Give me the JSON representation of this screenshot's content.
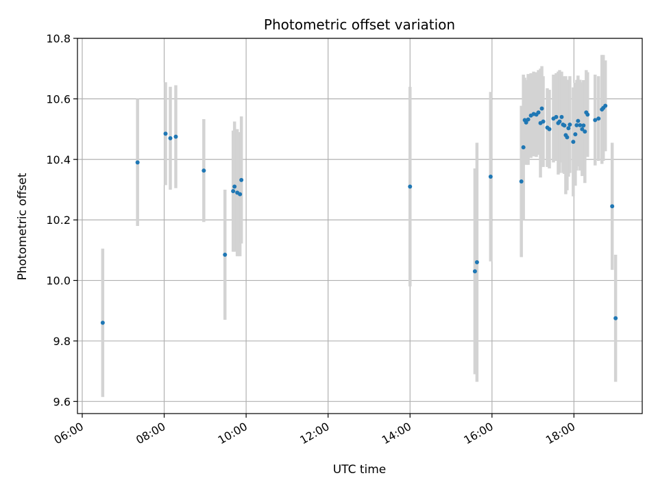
{
  "chart_data": {
    "type": "scatter",
    "title": "Photometric offset variation",
    "xlabel": "UTC time",
    "ylabel": "Photometric offset",
    "x_is_time": true,
    "xlim": [
      "05:53",
      "19:40"
    ],
    "ylim": [
      9.56,
      10.8
    ],
    "x_ticks": [
      "06:00",
      "08:00",
      "10:00",
      "12:00",
      "14:00",
      "16:00",
      "18:00"
    ],
    "y_ticks": [
      9.6,
      9.8,
      10.0,
      10.2,
      10.4,
      10.6,
      10.8
    ],
    "grid": true,
    "colors": {
      "point": "#1f77b4",
      "errorbar": "#d3d3d3",
      "grid": "#b0b0b0",
      "axis": "#000000"
    },
    "series": [
      {
        "points": [
          {
            "t": "06:30",
            "y": 9.86,
            "err": 0.245
          },
          {
            "t": "07:21",
            "y": 10.39,
            "err": 0.21
          },
          {
            "t": "08:02",
            "y": 10.485,
            "err": 0.17
          },
          {
            "t": "08:09",
            "y": 10.47,
            "err": 0.17
          },
          {
            "t": "08:17",
            "y": 10.475,
            "err": 0.17
          },
          {
            "t": "08:58",
            "y": 10.363,
            "err": 0.17
          },
          {
            "t": "09:29",
            "y": 10.085,
            "err": 0.215
          },
          {
            "t": "09:41",
            "y": 10.295,
            "err": 0.2
          },
          {
            "t": "09:43",
            "y": 10.31,
            "err": 0.215
          },
          {
            "t": "09:47",
            "y": 10.29,
            "err": 0.21
          },
          {
            "t": "09:51",
            "y": 10.285,
            "err": 0.205
          },
          {
            "t": "09:53",
            "y": 10.332,
            "err": 0.21
          },
          {
            "t": "14:00",
            "y": 10.31,
            "err": 0.33
          },
          {
            "t": "15:35",
            "y": 10.03,
            "err": 0.34
          },
          {
            "t": "15:38",
            "y": 10.06,
            "err": 0.395
          },
          {
            "t": "15:58",
            "y": 10.343,
            "err": 0.28
          },
          {
            "t": "16:43",
            "y": 10.327,
            "err": 0.25
          },
          {
            "t": "16:46",
            "y": 10.44,
            "err": 0.24
          },
          {
            "t": "16:48",
            "y": 10.53,
            "err": 0.14
          },
          {
            "t": "16:50",
            "y": 10.522,
            "err": 0.14
          },
          {
            "t": "16:53",
            "y": 10.532,
            "err": 0.15
          },
          {
            "t": "16:57",
            "y": 10.545,
            "err": 0.14
          },
          {
            "t": "17:01",
            "y": 10.55,
            "err": 0.14
          },
          {
            "t": "17:05",
            "y": 10.548,
            "err": 0.14
          },
          {
            "t": "17:08",
            "y": 10.555,
            "err": 0.14
          },
          {
            "t": "17:11",
            "y": 10.52,
            "err": 0.18
          },
          {
            "t": "17:13",
            "y": 10.568,
            "err": 0.14
          },
          {
            "t": "17:15",
            "y": 10.525,
            "err": 0.15
          },
          {
            "t": "17:21",
            "y": 10.505,
            "err": 0.13
          },
          {
            "t": "17:24",
            "y": 10.5,
            "err": 0.13
          },
          {
            "t": "17:30",
            "y": 10.535,
            "err": 0.145
          },
          {
            "t": "17:34",
            "y": 10.54,
            "err": 0.145
          },
          {
            "t": "17:37",
            "y": 10.52,
            "err": 0.17
          },
          {
            "t": "17:39",
            "y": 10.525,
            "err": 0.17
          },
          {
            "t": "17:42",
            "y": 10.54,
            "err": 0.15
          },
          {
            "t": "17:44",
            "y": 10.515,
            "err": 0.16
          },
          {
            "t": "17:46",
            "y": 10.512,
            "err": 0.16
          },
          {
            "t": "17:48",
            "y": 10.48,
            "err": 0.195
          },
          {
            "t": "17:50",
            "y": 10.473,
            "err": 0.175
          },
          {
            "t": "17:52",
            "y": 10.503,
            "err": 0.16
          },
          {
            "t": "17:54",
            "y": 10.515,
            "err": 0.16
          },
          {
            "t": "17:59",
            "y": 10.458,
            "err": 0.18
          },
          {
            "t": "18:02",
            "y": 10.483,
            "err": 0.17
          },
          {
            "t": "18:04",
            "y": 10.513,
            "err": 0.15
          },
          {
            "t": "18:06",
            "y": 10.527,
            "err": 0.15
          },
          {
            "t": "18:09",
            "y": 10.513,
            "err": 0.15
          },
          {
            "t": "18:12",
            "y": 10.5,
            "err": 0.155
          },
          {
            "t": "18:14",
            "y": 10.512,
            "err": 0.15
          },
          {
            "t": "18:16",
            "y": 10.492,
            "err": 0.17
          },
          {
            "t": "18:18",
            "y": 10.555,
            "err": 0.14
          },
          {
            "t": "18:20",
            "y": 10.548,
            "err": 0.14
          },
          {
            "t": "18:31",
            "y": 10.53,
            "err": 0.15
          },
          {
            "t": "18:36",
            "y": 10.535,
            "err": 0.14
          },
          {
            "t": "18:41",
            "y": 10.565,
            "err": 0.18
          },
          {
            "t": "18:43",
            "y": 10.57,
            "err": 0.175
          },
          {
            "t": "18:46",
            "y": 10.577,
            "err": 0.15
          },
          {
            "t": "18:56",
            "y": 10.245,
            "err": 0.21
          },
          {
            "t": "19:01",
            "y": 9.875,
            "err": 0.21
          }
        ]
      }
    ]
  }
}
